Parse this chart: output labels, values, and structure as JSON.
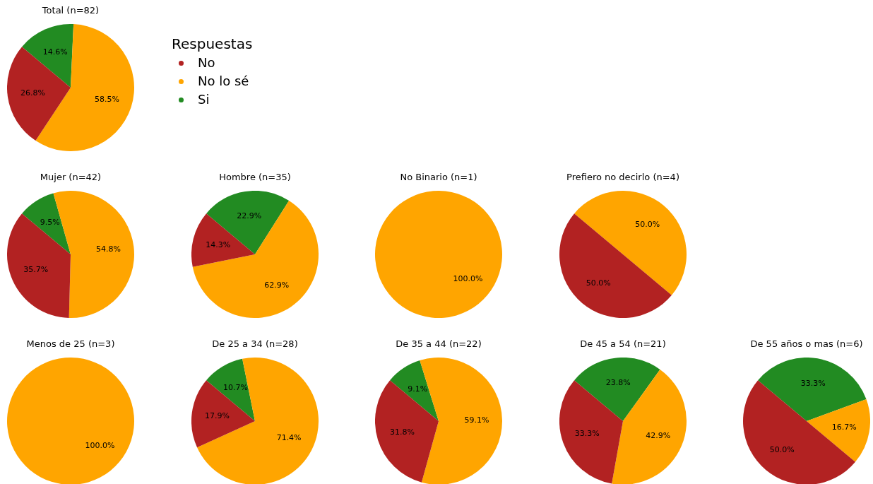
{
  "chart_data": [
    {
      "type": "pie",
      "title": "Total (n=82)",
      "categories": [
        "No",
        "No lo sé",
        "Si"
      ],
      "values": [
        26.8,
        58.5,
        14.6
      ],
      "colors": [
        "#b22222",
        "#ffa500",
        "#228b22"
      ],
      "value_labels": [
        "26.8%",
        "58.5%",
        "14.6%"
      ],
      "legend": "right",
      "legend_title": "Respuestas"
    },
    {
      "type": "pie",
      "title": "Mujer (n=42)",
      "categories": [
        null,
        null,
        null
      ],
      "values": [
        35.7,
        54.8,
        9.5
      ],
      "colors": [
        "#b22222",
        "#ffa500",
        "#228b22"
      ],
      "value_labels": [
        "35.7%",
        "54.8%",
        "9.5%"
      ]
    },
    {
      "type": "pie",
      "title": "Hombre (n=35)",
      "categories": [
        null,
        null,
        null
      ],
      "values": [
        14.3,
        62.9,
        22.9
      ],
      "colors": [
        "#b22222",
        "#ffa500",
        "#228b22"
      ],
      "value_labels": [
        "14.3%",
        "62.9%",
        "22.9%"
      ]
    },
    {
      "type": "pie",
      "title": "No Binario (n=1)",
      "categories": [
        null,
        null,
        null
      ],
      "values": [
        0,
        100,
        0
      ],
      "colors": [
        "#b22222",
        "#ffa500",
        "#228b22"
      ],
      "value_labels": [
        null,
        "100.0%",
        null
      ]
    },
    {
      "type": "pie",
      "title": "Prefiero no decirlo (n=4)",
      "categories": [
        null,
        null,
        null
      ],
      "values": [
        50,
        50,
        0
      ],
      "colors": [
        "#b22222",
        "#ffa500",
        "#228b22"
      ],
      "value_labels": [
        "50.0%",
        "50.0%",
        null
      ]
    },
    {
      "type": "pie",
      "title": "Menos de 25 (n=3)",
      "categories": [
        null,
        null,
        null
      ],
      "values": [
        0,
        100,
        0
      ],
      "colors": [
        "#b22222",
        "#ffa500",
        "#228b22"
      ],
      "value_labels": [
        null,
        "100.0%",
        null
      ]
    },
    {
      "type": "pie",
      "title": "De 25 a 34 (n=28)",
      "categories": [
        null,
        null,
        null
      ],
      "values": [
        17.9,
        71.4,
        10.7
      ],
      "colors": [
        "#b22222",
        "#ffa500",
        "#228b22"
      ],
      "value_labels": [
        "17.9%",
        "71.4%",
        "10.7%"
      ]
    },
    {
      "type": "pie",
      "title": "De 35 a 44 (n=22)",
      "categories": [
        null,
        null,
        null
      ],
      "values": [
        31.8,
        59.1,
        9.1
      ],
      "colors": [
        "#b22222",
        "#ffa500",
        "#228b22"
      ],
      "value_labels": [
        "31.8%",
        "59.1%",
        "9.1%"
      ]
    },
    {
      "type": "pie",
      "title": "De 45 a 54 (n=21)",
      "categories": [
        null,
        null,
        null
      ],
      "values": [
        33.3,
        42.9,
        23.8
      ],
      "colors": [
        "#b22222",
        "#ffa500",
        "#228b22"
      ],
      "value_labels": [
        "33.3%",
        "42.9%",
        "23.8%"
      ]
    },
    {
      "type": "pie",
      "title": "De 55 años o mas (n=6)",
      "categories": [
        null,
        null,
        null
      ],
      "values": [
        50.0,
        16.7,
        33.3
      ],
      "colors": [
        "#b22222",
        "#ffa500",
        "#228b22"
      ],
      "value_labels": [
        "50.0%",
        "16.7%",
        "33.3%"
      ]
    }
  ]
}
